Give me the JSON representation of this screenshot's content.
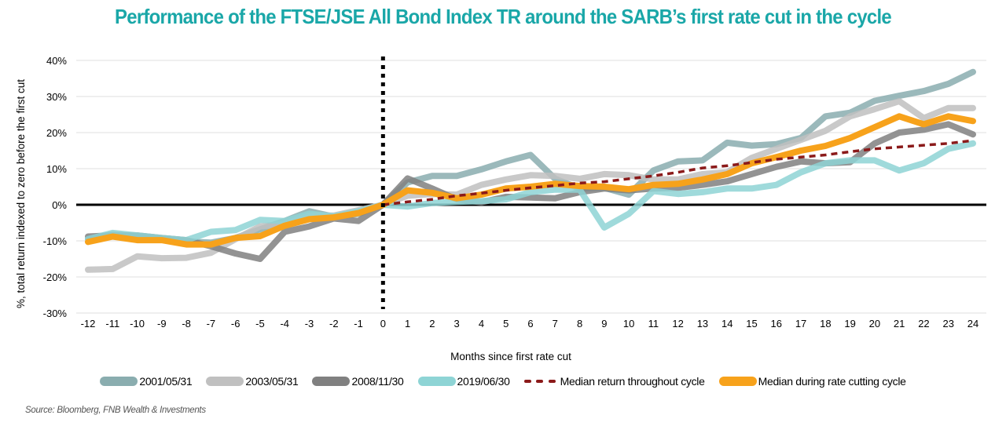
{
  "chart_data": {
    "type": "line",
    "title": "Performance of the FTSE/JSE All Bond Index TR around the SARB’s first rate cut in the cycle",
    "xlabel": "Months since first rate cut",
    "ylabel": "%, total return indexed to zero before the first cut",
    "x": [
      -12,
      -11,
      -10,
      -9,
      -8,
      -7,
      -6,
      -5,
      -4,
      -3,
      -2,
      -1,
      0,
      1,
      2,
      3,
      4,
      5,
      6,
      7,
      8,
      9,
      10,
      11,
      12,
      13,
      14,
      15,
      16,
      17,
      18,
      19,
      20,
      21,
      22,
      23,
      24
    ],
    "x_tick_labels": [
      "-12",
      "-11",
      "-10",
      "-9",
      "-8",
      "-7",
      "-6",
      "-5",
      "-4",
      "-3",
      "-2",
      "-1",
      "0",
      "1",
      "2",
      "3",
      "4",
      "5",
      "6",
      "7",
      "8",
      "9",
      "10",
      "11",
      "12",
      "13",
      "14",
      "15",
      "16",
      "17",
      "18",
      "19",
      "20",
      "21",
      "22",
      "23",
      "24"
    ],
    "ylim": [
      -30,
      40
    ],
    "y_ticks": [
      -30,
      -20,
      -10,
      0,
      10,
      20,
      30,
      40
    ],
    "y_tick_labels": [
      "-30%",
      "-20%",
      "-10%",
      "0%",
      "10%",
      "20%",
      "30%",
      "40%"
    ],
    "grid": true,
    "legend_position": "bottom",
    "annotations": [
      {
        "type": "vertical-dotted-line",
        "x": 0
      }
    ],
    "series": [
      {
        "name": "2001/05/31",
        "color": "#8aadaf",
        "style": "solid",
        "values": [
          -9.5,
          -8.2,
          -8.8,
          -9.5,
          -10.2,
          -10.5,
          -9.2,
          -6.8,
          -4.5,
          -1.8,
          -3.3,
          -2.5,
          0,
          6.2,
          8.0,
          8.0,
          9.8,
          12.0,
          13.8,
          7.2,
          4.5,
          4.7,
          2.8,
          9.5,
          12.0,
          12.3,
          17.2,
          16.4,
          16.8,
          18.5,
          24.5,
          25.5,
          28.8,
          30.2,
          31.5,
          33.5,
          36.8
        ]
      },
      {
        "name": "2003/05/31",
        "color": "#c0c0c0",
        "style": "solid",
        "values": [
          -18.0,
          -17.8,
          -14.3,
          -14.8,
          -14.7,
          -13.3,
          -9.5,
          -6.0,
          -5.3,
          -3.0,
          -3.0,
          -1.5,
          0,
          2.5,
          3.0,
          2.8,
          5.5,
          7.0,
          8.2,
          8.0,
          7.2,
          8.5,
          8.2,
          7.0,
          7.0,
          8.5,
          9.0,
          13.0,
          15.5,
          18.0,
          20.5,
          24.5,
          26.5,
          28.7,
          24.0,
          26.8,
          26.8
        ]
      },
      {
        "name": "2008/11/30",
        "color": "#808080",
        "style": "solid",
        "values": [
          -8.8,
          -8.5,
          -8.5,
          -9.2,
          -9.8,
          -11.5,
          -13.5,
          -15.0,
          -7.5,
          -6.0,
          -3.8,
          -4.5,
          0,
          7.3,
          4.5,
          1.5,
          0.7,
          2.2,
          2.0,
          1.8,
          3.5,
          4.5,
          4.0,
          4.5,
          4.7,
          5.5,
          6.5,
          8.5,
          10.5,
          12.0,
          11.5,
          11.8,
          17.0,
          20.0,
          20.8,
          22.3,
          19.5
        ]
      },
      {
        "name": "2019/06/30",
        "color": "#8ed4d5",
        "style": "solid",
        "values": [
          -9.5,
          -7.8,
          -8.5,
          -9.2,
          -9.8,
          -7.5,
          -7.0,
          -4.2,
          -4.5,
          -2.5,
          -3.2,
          -1.8,
          0,
          -0.5,
          0.5,
          0.8,
          1.0,
          1.5,
          3.5,
          4.2,
          4.2,
          -6.3,
          -2.5,
          3.8,
          3.0,
          3.5,
          4.5,
          4.5,
          5.5,
          9.0,
          11.5,
          12.3,
          12.3,
          9.5,
          11.5,
          15.5,
          17.0
        ]
      },
      {
        "name": "Median return throughout cycle",
        "color": "#8b1a1a",
        "style": "dashed",
        "values": [
          null,
          null,
          null,
          null,
          null,
          null,
          null,
          null,
          null,
          null,
          null,
          null,
          0,
          0.8,
          1.5,
          2.5,
          3.2,
          4.0,
          4.7,
          5.3,
          6.0,
          6.4,
          7.2,
          8.0,
          9.0,
          10.2,
          10.8,
          11.7,
          12.6,
          13.2,
          13.8,
          14.7,
          15.5,
          16.0,
          16.5,
          17.0,
          17.8
        ]
      },
      {
        "name": "Median during rate cutting cycle",
        "color": "#f7a21b",
        "style": "solid",
        "values": [
          -10.3,
          -8.8,
          -9.8,
          -9.8,
          -11.0,
          -11.0,
          -9.2,
          -8.7,
          -5.8,
          -4.0,
          -3.5,
          -2.3,
          0,
          4.0,
          3.3,
          1.8,
          2.8,
          4.5,
          5.0,
          5.8,
          5.2,
          5.0,
          4.3,
          5.5,
          5.8,
          7.0,
          8.5,
          11.5,
          13.2,
          15.0,
          16.3,
          18.5,
          21.5,
          24.5,
          22.3,
          24.5,
          23.2
        ]
      }
    ]
  },
  "source": "Source: Bloomberg, FNB Wealth & Investments"
}
